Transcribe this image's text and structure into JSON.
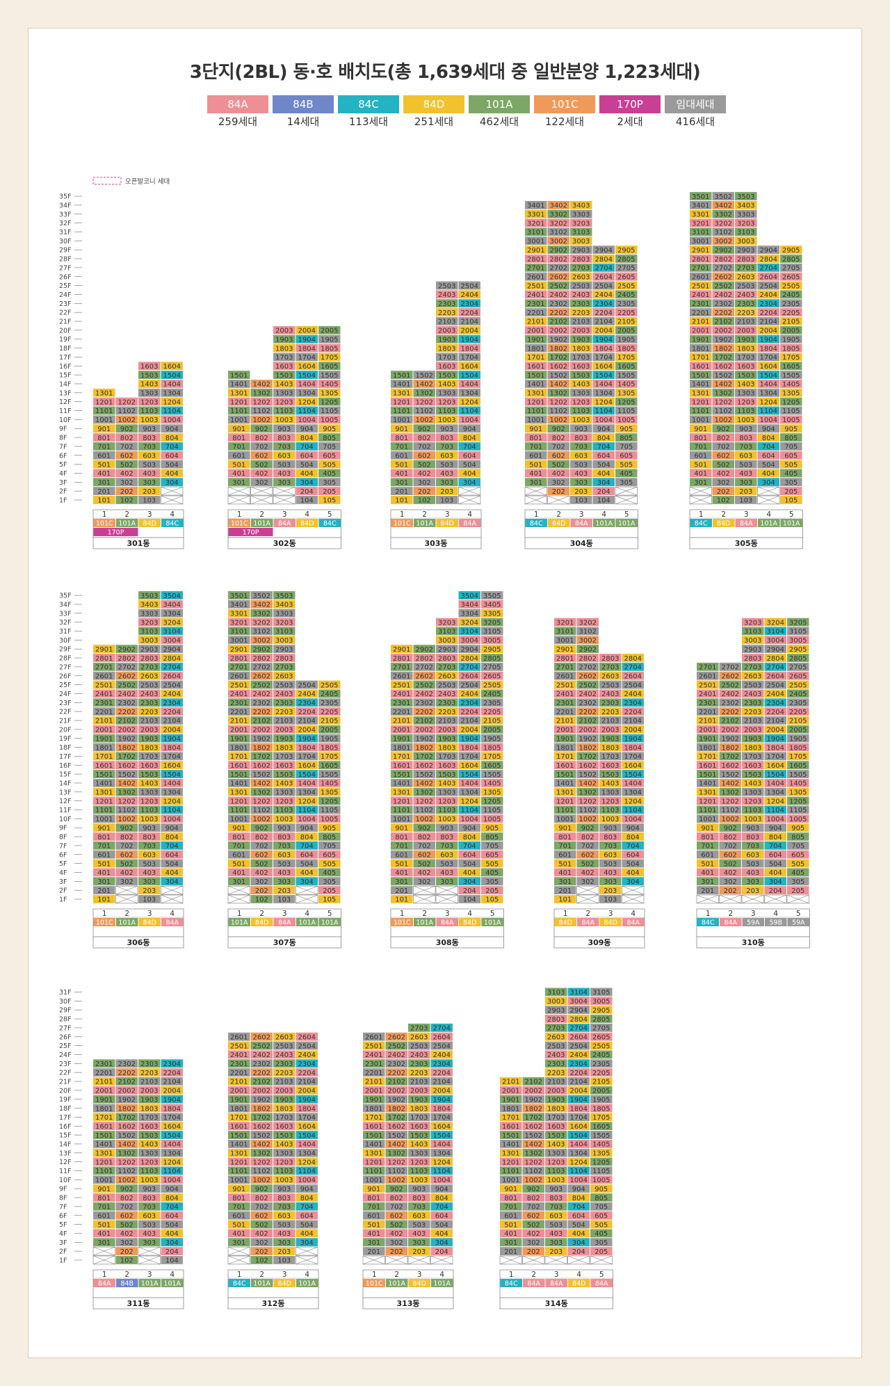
{
  "title": "3단지(2BL) 동·호 배치도(총 1,639세대 중 일반분양 1,223세대)",
  "legend": [
    {
      "type": "84A",
      "count": "259세대",
      "color": "#ee8f96"
    },
    {
      "type": "84B",
      "count": "14세대",
      "color": "#6f86c9"
    },
    {
      "type": "84C",
      "count": "113세대",
      "color": "#23b3c2"
    },
    {
      "type": "84D",
      "count": "251세대",
      "color": "#f2c12e"
    },
    {
      "type": "101A",
      "count": "462세대",
      "color": "#7da766"
    },
    {
      "type": "101C",
      "count": "122세대",
      "color": "#ef9a5a"
    },
    {
      "type": "170P",
      "count": "2세대",
      "color": "#c93f96"
    },
    {
      "type": "임대세대",
      "count": "416세대",
      "color": "#9a9a9a"
    }
  ],
  "open_balcony_label": "오픈발코니 세대",
  "line_heading_numbers": [
    "1",
    "2",
    "3",
    "4",
    "5"
  ],
  "buildings": [
    {
      "name": "301동",
      "line_types": [
        "101C",
        "101A",
        "84D",
        "84C"
      ],
      "extra_type": "170P",
      "lines": [
        {
          "fmin": 1,
          "fmax": 13,
          "pattern": "A"
        },
        {
          "fmin": 1,
          "fmax": 12,
          "pattern": "B"
        },
        {
          "fmin": 1,
          "fmax": 16,
          "pattern": "C"
        },
        {
          "fmin": 3,
          "fmax": 16,
          "pattern": "D"
        }
      ]
    },
    {
      "name": "302동",
      "line_types": [
        "101C",
        "101A",
        "84A",
        "84D",
        "84C"
      ],
      "extra_type": "170P",
      "lines": [
        {
          "fmin": 3,
          "fmax": 15,
          "pattern": "A"
        },
        {
          "fmin": 3,
          "fmax": 14,
          "pattern": "B"
        },
        {
          "fmin": 3,
          "fmax": 20,
          "pattern": "C"
        },
        {
          "fmin": 1,
          "fmax": 20,
          "pattern": "D"
        },
        {
          "fmin": 1,
          "fmax": 20,
          "pattern": "E"
        }
      ]
    },
    {
      "name": "303동",
      "line_types": [
        "101C",
        "101A",
        "84D",
        "84A"
      ],
      "lines": [
        {
          "fmin": 1,
          "fmax": 15,
          "pattern": "A"
        },
        {
          "fmin": 1,
          "fmax": 15,
          "pattern": "B"
        },
        {
          "fmin": 1,
          "fmax": 25,
          "pattern": "C"
        },
        {
          "fmin": 3,
          "fmax": 25,
          "pattern": "D"
        }
      ]
    },
    {
      "name": "304동",
      "line_types": [
        "84C",
        "84D",
        "84A",
        "101A",
        "101A"
      ],
      "lines": [
        {
          "fmin": 3,
          "fmax": 34,
          "pattern": "A"
        },
        {
          "fmin": 2,
          "fmax": 34,
          "pattern": "B"
        },
        {
          "fmin": 1,
          "fmax": 34,
          "pattern": "C"
        },
        {
          "fmin": 1,
          "fmax": 29,
          "pattern": "D"
        },
        {
          "fmin": 3,
          "fmax": 29,
          "pattern": "E"
        }
      ]
    },
    {
      "name": "305동",
      "line_types": [
        "84C",
        "84D",
        "84A",
        "101A",
        "101A"
      ],
      "lines": [
        {
          "fmin": 3,
          "fmax": 35,
          "pattern": "A"
        },
        {
          "fmin": 1,
          "fmax": 35,
          "pattern": "B"
        },
        {
          "fmin": 1,
          "fmax": 35,
          "pattern": "C"
        },
        {
          "fmin": 3,
          "fmax": 29,
          "pattern": "D"
        },
        {
          "fmin": 1,
          "fmax": 29,
          "pattern": "E"
        }
      ]
    },
    {
      "name": "306동",
      "line_types": [
        "101C",
        "101A",
        "84D",
        "84A"
      ],
      "lines": [
        {
          "fmin": 1,
          "fmax": 29,
          "pattern": "A"
        },
        {
          "fmin": 3,
          "fmax": 29,
          "pattern": "B"
        },
        {
          "fmin": 1,
          "fmax": 35,
          "pattern": "C"
        },
        {
          "fmin": 3,
          "fmax": 35,
          "pattern": "D"
        }
      ]
    },
    {
      "name": "307동",
      "line_types": [
        "101A",
        "84D",
        "84A",
        "101A",
        "101A"
      ],
      "lines": [
        {
          "fmin": 3,
          "fmax": 35,
          "pattern": "A"
        },
        {
          "fmin": 1,
          "fmax": 35,
          "pattern": "B"
        },
        {
          "fmin": 1,
          "fmax": 35,
          "pattern": "C"
        },
        {
          "fmin": 3,
          "fmax": 25,
          "pattern": "D"
        },
        {
          "fmin": 1,
          "fmax": 25,
          "pattern": "E"
        }
      ]
    },
    {
      "name": "308동",
      "line_types": [
        "101C",
        "101A",
        "84A",
        "84D",
        "101A"
      ],
      "lines": [
        {
          "fmin": 1,
          "fmax": 29,
          "pattern": "A"
        },
        {
          "fmin": 3,
          "fmax": 29,
          "pattern": "B"
        },
        {
          "fmin": 3,
          "fmax": 32,
          "pattern": "C"
        },
        {
          "fmin": 1,
          "fmax": 35,
          "pattern": "D"
        },
        {
          "fmin": 1,
          "fmax": 35,
          "pattern": "E"
        }
      ]
    },
    {
      "name": "309동",
      "line_types": [
        "84D",
        "84A",
        "84D",
        "84A"
      ],
      "lines": [
        {
          "fmin": 1,
          "fmax": 32,
          "pattern": "A"
        },
        {
          "fmin": 3,
          "fmax": 32,
          "pattern": "B"
        },
        {
          "fmin": 1,
          "fmax": 28,
          "pattern": "C"
        },
        {
          "fmin": 3,
          "fmax": 28,
          "pattern": "D"
        }
      ]
    },
    {
      "name": "310동",
      "line_types": [
        "84C",
        "84A",
        "59A",
        "59B",
        "59A"
      ],
      "lines": [
        {
          "fmin": 2,
          "fmax": 27,
          "pattern": "A"
        },
        {
          "fmin": 2,
          "fmax": 27,
          "pattern": "B"
        },
        {
          "fmin": 2,
          "fmax": 32,
          "pattern": "C"
        },
        {
          "fmin": 2,
          "fmax": 32,
          "pattern": "D"
        },
        {
          "fmin": 2,
          "fmax": 32,
          "pattern": "E"
        }
      ]
    },
    {
      "name": "311동",
      "line_types": [
        "84A",
        "84B",
        "101A",
        "101A"
      ],
      "lines": [
        {
          "fmin": 3,
          "fmax": 23,
          "pattern": "A"
        },
        {
          "fmin": 1,
          "fmax": 23,
          "pattern": "B"
        },
        {
          "fmin": 3,
          "fmax": 23,
          "pattern": "C"
        },
        {
          "fmin": 1,
          "fmax": 23,
          "pattern": "D"
        }
      ]
    },
    {
      "name": "312동",
      "line_types": [
        "84C",
        "101A",
        "84D",
        "101A"
      ],
      "lines": [
        {
          "fmin": 3,
          "fmax": 26,
          "pattern": "A"
        },
        {
          "fmin": 1,
          "fmax": 26,
          "pattern": "B"
        },
        {
          "fmin": 1,
          "fmax": 26,
          "pattern": "C"
        },
        {
          "fmin": 3,
          "fmax": 26,
          "pattern": "D"
        }
      ]
    },
    {
      "name": "313동",
      "line_types": [
        "101C",
        "101A",
        "84D",
        "101A"
      ],
      "lines": [
        {
          "fmin": 2,
          "fmax": 26,
          "pattern": "A"
        },
        {
          "fmin": 2,
          "fmax": 26,
          "pattern": "B"
        },
        {
          "fmin": 2,
          "fmax": 27,
          "pattern": "C"
        },
        {
          "fmin": 2,
          "fmax": 27,
          "pattern": "D"
        }
      ]
    },
    {
      "name": "314동",
      "line_types": [
        "84C",
        "84A",
        "84A",
        "84D",
        "84A"
      ],
      "lines": [
        {
          "fmin": 2,
          "fmax": 21,
          "pattern": "A"
        },
        {
          "fmin": 2,
          "fmax": 21,
          "pattern": "B"
        },
        {
          "fmin": 2,
          "fmax": 31,
          "pattern": "C"
        },
        {
          "fmin": 2,
          "fmax": 31,
          "pattern": "D"
        },
        {
          "fmin": 2,
          "fmax": 31,
          "pattern": "E"
        }
      ]
    }
  ],
  "floor_axes": [
    {
      "labels": [
        "35F",
        "34F",
        "33F",
        "32F",
        "31F",
        "30F",
        "29F",
        "28F",
        "27F",
        "26F",
        "25F",
        "24F",
        "23F",
        "22F",
        "21F",
        "20F",
        "19F",
        "18F",
        "17F",
        "16F",
        "15F",
        "14F",
        "13F",
        "12F",
        "11F",
        "10F",
        "9F",
        "8F",
        "7F",
        "6F",
        "5F",
        "4F",
        "3F",
        "2F",
        "1F"
      ]
    },
    {
      "labels": [
        "35F",
        "34F",
        "33F",
        "32F",
        "31F",
        "30F",
        "29F",
        "28F",
        "27F",
        "26F",
        "25F",
        "24F",
        "23F",
        "22F",
        "21F",
        "20F",
        "19F",
        "18F",
        "17F",
        "16F",
        "15F",
        "14F",
        "13F",
        "12F",
        "11F",
        "10F",
        "9F",
        "8F",
        "7F",
        "6F",
        "5F",
        "4F",
        "3F",
        "2F",
        "1F"
      ]
    },
    {
      "labels": [
        "31F",
        "30F",
        "29F",
        "28F",
        "27F",
        "26F",
        "25F",
        "24F",
        "23F",
        "22F",
        "21F",
        "20F",
        "19F",
        "18F",
        "17F",
        "16F",
        "15F",
        "14F",
        "13F",
        "12F",
        "11F",
        "10F",
        "9F",
        "8F",
        "7F",
        "6F",
        "5F",
        "4F",
        "3F",
        "2F",
        "1F"
      ]
    }
  ],
  "colors": {
    "84A": "#ee8f96",
    "84B": "#6f86c9",
    "84C": "#23b3c2",
    "84D": "#f2c12e",
    "101A": "#7da766",
    "101C": "#ef9a5a",
    "170P": "#c93f96",
    "rent": "#9a9a9a",
    "59A": "#9a9a9a",
    "59B": "#9a9a9a"
  }
}
